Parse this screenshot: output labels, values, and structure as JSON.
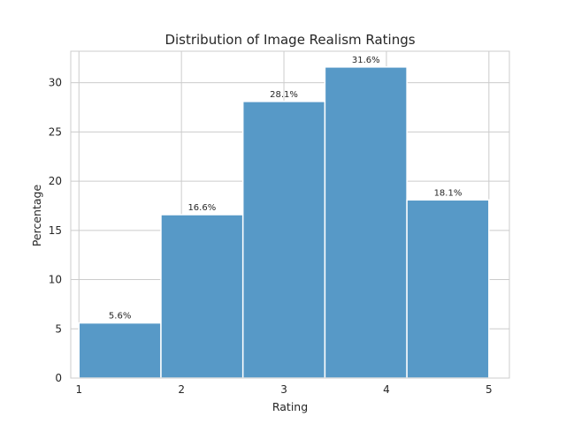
{
  "chart_data": {
    "type": "bar",
    "title": "Distribution of Image Realism Ratings",
    "xlabel": "Rating",
    "ylabel": "Percentage",
    "x_ticks": [
      1,
      2,
      3,
      4,
      5
    ],
    "y_ticks": [
      0,
      5,
      10,
      15,
      20,
      25,
      30
    ],
    "xlim": [
      0.92,
      5.2
    ],
    "ylim": [
      0,
      33.2
    ],
    "bins": [
      {
        "start": 1.0,
        "end": 1.8,
        "value": 5.6,
        "label": "5.6%"
      },
      {
        "start": 1.8,
        "end": 2.6,
        "value": 16.6,
        "label": "16.6%"
      },
      {
        "start": 2.6,
        "end": 3.4,
        "value": 28.1,
        "label": "28.1%"
      },
      {
        "start": 3.4,
        "end": 4.2,
        "value": 31.6,
        "label": "31.6%"
      },
      {
        "start": 4.2,
        "end": 5.0,
        "value": 18.1,
        "label": "18.1%"
      }
    ],
    "bar_color": "#5799c7",
    "bar_edge_color": "#ffffff",
    "grid": true,
    "legend": "none"
  }
}
